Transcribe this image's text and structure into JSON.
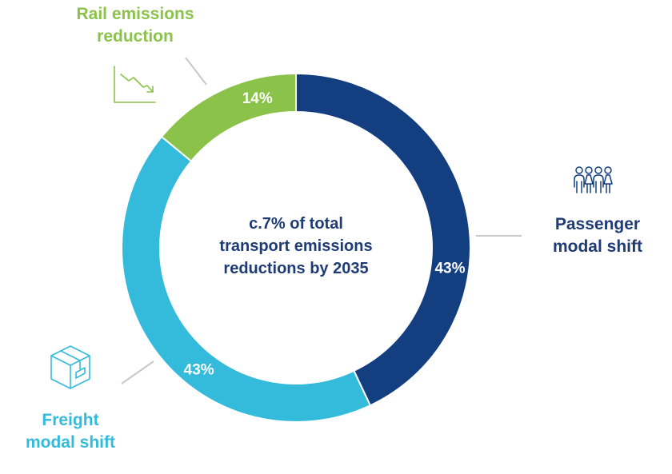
{
  "chart_data": {
    "type": "pie",
    "variant": "donut",
    "title": "",
    "center_text": [
      "c.7% of total",
      "transport emissions",
      "reductions by 2035"
    ],
    "slices": [
      {
        "name": "Passenger modal shift",
        "label_lines": [
          "Passenger",
          "modal shift"
        ],
        "value": 43,
        "value_label": "43%",
        "color": "#133e80",
        "icon": "people-icon"
      },
      {
        "name": "Freight modal shift",
        "label_lines": [
          "Freight",
          "modal shift"
        ],
        "value": 43,
        "value_label": "43%",
        "color": "#34bbdb",
        "icon": "box-icon"
      },
      {
        "name": "Rail emissions reduction",
        "label_lines": [
          "Rail emissions",
          "reduction"
        ],
        "value": 14,
        "value_label": "14%",
        "color": "#8bc34a",
        "icon": "declining-chart-icon"
      }
    ],
    "legend": "none"
  }
}
